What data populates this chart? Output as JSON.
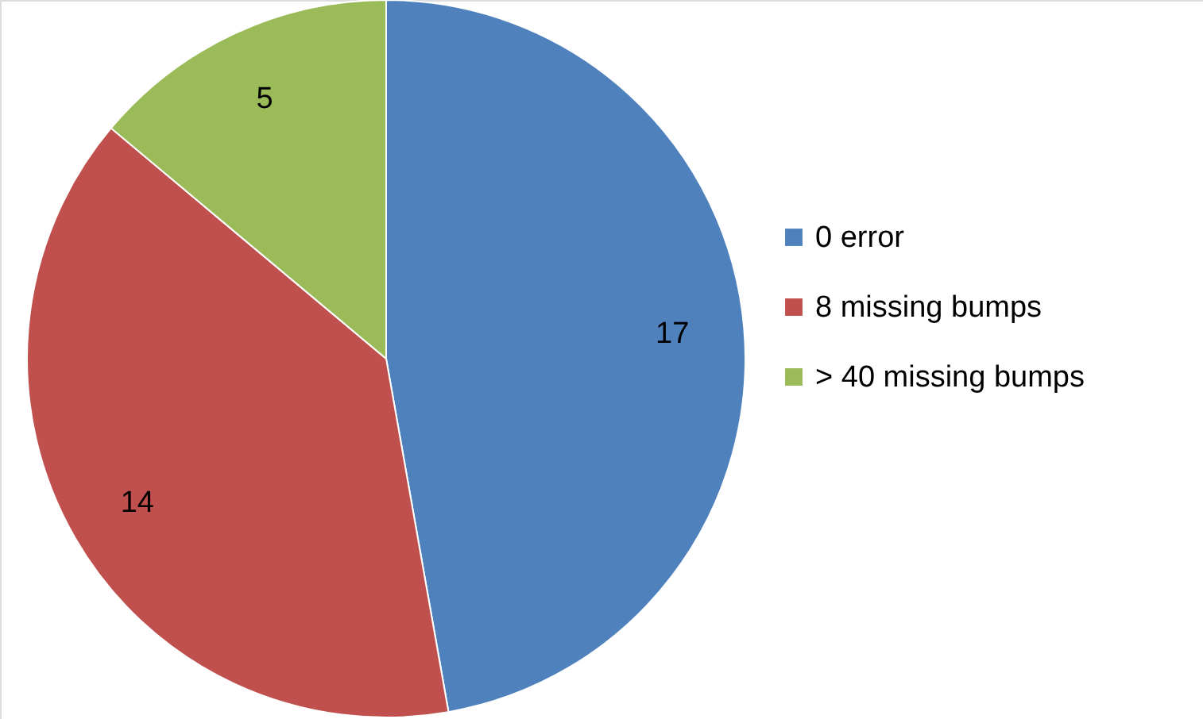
{
  "chart_data": {
    "type": "pie",
    "categories": [
      "0 error",
      "8 missing bumps",
      "> 40 missing bumps"
    ],
    "values": [
      17,
      14,
      5
    ],
    "colors": [
      "#4f81bd",
      "#c0504d",
      "#9bbb59"
    ],
    "data_labels": true,
    "legend": "right"
  }
}
